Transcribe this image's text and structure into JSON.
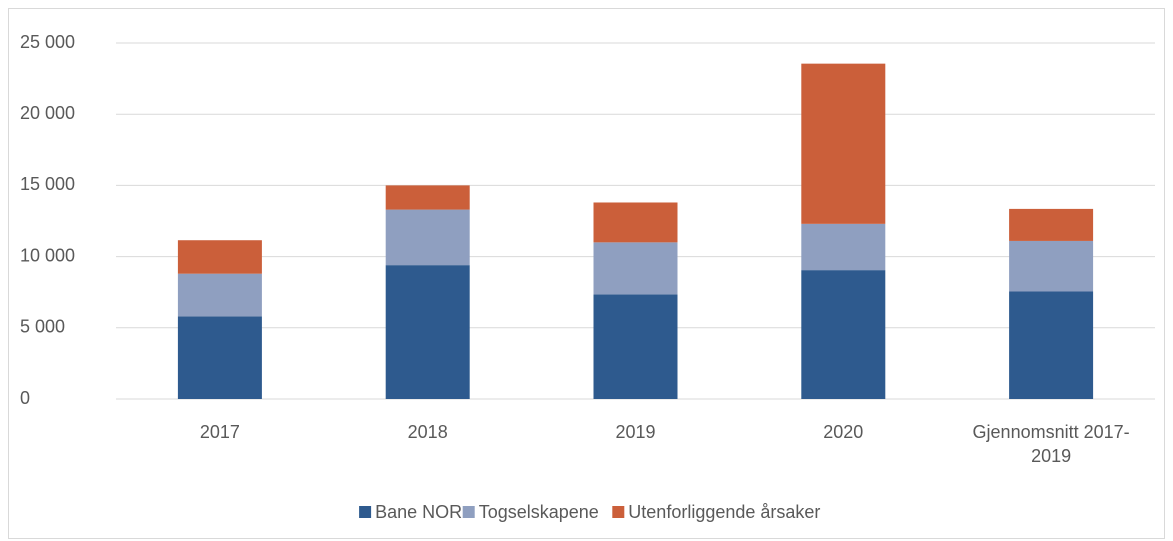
{
  "chart_data": {
    "type": "stacked_bar",
    "categories": [
      "2017",
      "2018",
      "2019",
      "2020",
      "Gjennomsnitt 2017-2019"
    ],
    "series": [
      {
        "name": "Bane NOR",
        "color": "#2e5a8e",
        "values": [
          5800,
          9400,
          7350,
          9050,
          7550
        ]
      },
      {
        "name": "Togselskapene",
        "color": "#8f9fc0",
        "values": [
          3000,
          3900,
          3650,
          3250,
          3550
        ]
      },
      {
        "name": "Utenforliggende årsaker",
        "color": "#cb5f3a",
        "values": [
          2350,
          1700,
          2800,
          11250,
          2250
        ]
      }
    ],
    "ylim": [
      0,
      25000
    ],
    "yticks": [
      0,
      {
        "value": 5000,
        "label": "5 000"
      },
      {
        "value": 10000,
        "label": "10 000"
      },
      {
        "value": 15000,
        "label": "15 000"
      },
      {
        "value": 20000,
        "label": "20 000"
      },
      {
        "value": 25000,
        "label": "25 000"
      }
    ],
    "grid": true,
    "legend": "bottom"
  }
}
